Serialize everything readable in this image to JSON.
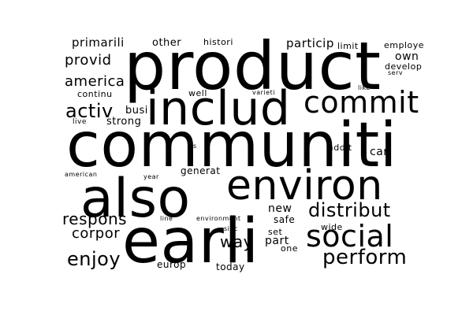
{
  "text_color": "#000000",
  "background_color": "#ffffff",
  "words": [
    "product",
    "communiti",
    "earli",
    "also",
    "includ",
    "environ",
    "commit",
    "social",
    "distribut",
    "perform",
    "activ",
    "enjoy",
    "way",
    "respons",
    "corpor",
    "america",
    "provid",
    "primarili",
    "other",
    "histori",
    "particip",
    "limit",
    "employe",
    "own",
    "develop",
    "serv",
    "like",
    "continu",
    "busi",
    "strong",
    "live",
    "well",
    "varieti",
    "s",
    "addit",
    "car",
    "generat",
    "american",
    "year",
    "new",
    "safe",
    "line",
    "environment",
    "set",
    "part",
    "sinc",
    "wide",
    "one",
    "europ",
    "today"
  ]
}
